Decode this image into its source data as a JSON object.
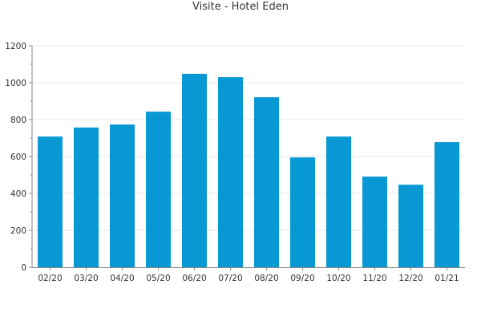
{
  "chart_data": {
    "type": "bar",
    "title": "Visite - Hotel Eden",
    "xlabel": "",
    "ylabel": "",
    "categories": [
      "02/20",
      "03/20",
      "04/20",
      "05/20",
      "06/20",
      "07/20",
      "08/20",
      "09/20",
      "10/20",
      "11/20",
      "12/20",
      "01/21"
    ],
    "values": [
      708,
      757,
      773,
      843,
      1048,
      1030,
      921,
      595,
      708,
      491,
      447,
      678
    ],
    "ylim": [
      0,
      1200
    ],
    "yticks": [
      0,
      200,
      400,
      600,
      800,
      1000,
      1200
    ],
    "grid": true,
    "legend": "none",
    "colors": {
      "bar": "#0899d4",
      "grid": "#e4e4e4",
      "axis": "#888888",
      "text": "#333333"
    }
  }
}
